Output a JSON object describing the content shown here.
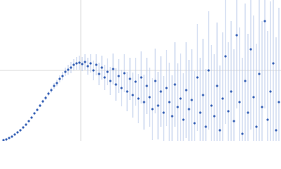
{
  "chart_data": {
    "type": "scatter",
    "color": "#3560b5",
    "error_color": "#b9c9ea",
    "grid": true,
    "xlim": [
      0,
      400
    ],
    "ylim": [
      0,
      200
    ],
    "xticks": [
      115
    ],
    "yticks": [
      100
    ],
    "x": [
      5,
      9,
      13,
      17,
      21,
      25,
      29,
      33,
      37,
      41,
      45,
      49,
      53,
      57,
      61,
      65,
      69,
      73,
      77,
      81,
      85,
      89,
      93,
      97,
      101,
      105,
      109,
      113,
      117,
      121,
      125,
      129,
      133,
      137,
      141,
      145,
      149,
      153,
      157,
      161,
      165,
      169,
      173,
      177,
      181,
      185,
      189,
      193,
      197,
      201,
      205,
      209,
      213,
      217,
      221,
      225,
      229,
      233,
      237,
      241,
      245,
      249,
      253,
      257,
      261,
      265,
      269,
      273,
      277,
      281,
      285,
      289,
      293,
      297,
      301,
      305,
      309,
      313,
      317,
      321,
      325,
      329,
      333,
      337,
      341,
      345,
      349,
      353,
      357,
      361,
      365,
      369,
      373,
      377,
      381,
      385,
      389,
      393,
      397
    ],
    "values": [
      1,
      2,
      4,
      6,
      9,
      12,
      15,
      19,
      23,
      28,
      33,
      39,
      44,
      50,
      56,
      61,
      67,
      72,
      78,
      82,
      88,
      92,
      98,
      101,
      104,
      108,
      110,
      111,
      109,
      112,
      106,
      110,
      100,
      108,
      95,
      104,
      90,
      98,
      85,
      102,
      80,
      92,
      75,
      96,
      70,
      88,
      65,
      84,
      60,
      90,
      55,
      78,
      62,
      45,
      85,
      50,
      70,
      40,
      75,
      55,
      35,
      80,
      48,
      60,
      30,
      72,
      45,
      58,
      25,
      90,
      40,
      65,
      20,
      100,
      50,
      35,
      78,
      15,
      60,
      120,
      42,
      70,
      28,
      150,
      55,
      10,
      85,
      40,
      130,
      62,
      20,
      95,
      48,
      170,
      30,
      70,
      110,
      15,
      55
    ],
    "errors": [
      0.5,
      0.5,
      0.5,
      0.5,
      0.6,
      0.6,
      0.7,
      0.8,
      0.9,
      1,
      1.2,
      1.5,
      2,
      2,
      2.5,
      3,
      3,
      3.5,
      4,
      4.5,
      5,
      6,
      6,
      7,
      8,
      8,
      9,
      10,
      10,
      11,
      12,
      13,
      14,
      15,
      16,
      17,
      18,
      19,
      20,
      22,
      23,
      24,
      26,
      27,
      28,
      30,
      32,
      34,
      35,
      37,
      39,
      40,
      42,
      44,
      46,
      48,
      50,
      52,
      54,
      56,
      58,
      60,
      62,
      64,
      66,
      68,
      70,
      72,
      74,
      76,
      78,
      80,
      82,
      84,
      86,
      88,
      90,
      92,
      94,
      96,
      98,
      100,
      102,
      104,
      106,
      108,
      110,
      112,
      114,
      116,
      118,
      120,
      122,
      124,
      126,
      128,
      130,
      132,
      134
    ]
  }
}
